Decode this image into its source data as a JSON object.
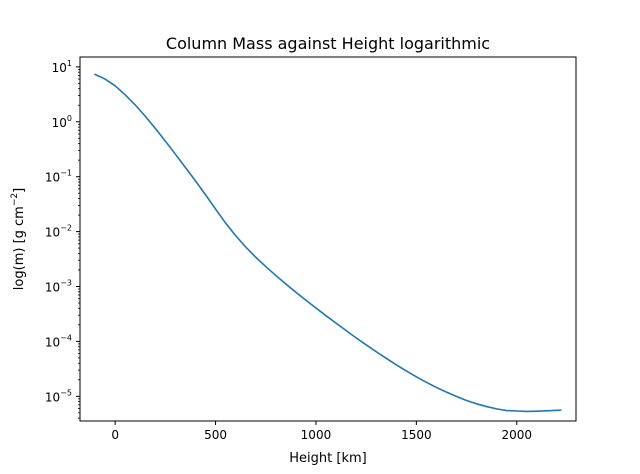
{
  "chart_data": {
    "type": "line",
    "title": "Column Mass against Height logarithmic",
    "xlabel": "Height [km]",
    "ylabel": {
      "text": "log(m) [g cm",
      "sup": "−2",
      "suffix": "]"
    },
    "xlim": [
      -175,
      2295
    ],
    "ylim_exponent": [
      -5.45,
      1.18
    ],
    "yscale": "log",
    "grid": false,
    "xticks": [
      {
        "value": 0,
        "label": "0"
      },
      {
        "value": 500,
        "label": "500"
      },
      {
        "value": 1000,
        "label": "1000"
      },
      {
        "value": 1500,
        "label": "1500"
      },
      {
        "value": 2000,
        "label": "2000"
      }
    ],
    "yticks": [
      {
        "exponent": 1,
        "base": "10",
        "sup": "1"
      },
      {
        "exponent": 0,
        "base": "10",
        "sup": "0"
      },
      {
        "exponent": -1,
        "base": "10",
        "sup": "−1"
      },
      {
        "exponent": -2,
        "base": "10",
        "sup": "−2"
      },
      {
        "exponent": -3,
        "base": "10",
        "sup": "−3"
      },
      {
        "exponent": -4,
        "base": "10",
        "sup": "−4"
      },
      {
        "exponent": -5,
        "base": "10",
        "sup": "−5"
      }
    ],
    "series": [
      {
        "color": "#1f77b4",
        "x": [
          -100,
          -50,
          0,
          50,
          100,
          150,
          200,
          250,
          300,
          350,
          400,
          450,
          500,
          550,
          600,
          650,
          700,
          750,
          800,
          850,
          900,
          950,
          1000,
          1050,
          1100,
          1150,
          1200,
          1250,
          1300,
          1350,
          1400,
          1450,
          1500,
          1550,
          1600,
          1650,
          1700,
          1750,
          1800,
          1850,
          1900,
          1950,
          2000,
          2050,
          2100,
          2150,
          2200,
          2220
        ],
        "y": [
          7.3,
          6.0,
          4.52,
          3.1,
          2.03,
          1.26,
          0.758,
          0.445,
          0.257,
          0.147,
          0.0838,
          0.0469,
          0.0257,
          0.0143,
          0.00845,
          0.00524,
          0.00341,
          0.00231,
          0.00159,
          0.00111,
          0.000786,
          0.000563,
          0.000405,
          0.000294,
          0.000215,
          0.000158,
          0.000116,
          8.66e-05,
          6.5e-05,
          4.91e-05,
          3.74e-05,
          2.89e-05,
          2.26e-05,
          1.8e-05,
          1.45e-05,
          1.19e-05,
          9.9e-06,
          8.4e-06,
          7.3e-06,
          6.5e-06,
          5.9e-06,
          5.5e-06,
          5.4e-06,
          5.3e-06,
          5.35e-06,
          5.45e-06,
          5.55e-06,
          5.6e-06
        ]
      }
    ]
  }
}
